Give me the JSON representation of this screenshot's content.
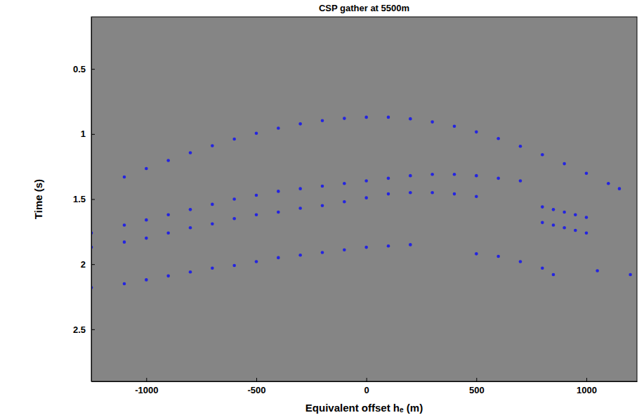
{
  "chart_data": {
    "type": "scatter",
    "title": "CSP gather at 5500m",
    "x_label": "Equivalent offset hₑ (m)",
    "y_label": "Time (s)",
    "xlim": [
      -1250,
      1230
    ],
    "xticks": [
      -1000,
      -500,
      0,
      500,
      1000
    ],
    "ylim": [
      0.1,
      2.9
    ],
    "yticks": [
      0.5,
      1,
      1.5,
      2,
      2.5
    ],
    "grid": false,
    "series": [
      {
        "color": "#2424e0",
        "marker": "circle",
        "x": [
          -1100,
          -1000,
          -900,
          -800,
          -700,
          -600,
          -500,
          -400,
          -300,
          -200,
          -100,
          0,
          100,
          200,
          300,
          400,
          500,
          600,
          700,
          800,
          900,
          1000,
          1100,
          1150
        ],
        "values": [
          1.33,
          1.265,
          1.203,
          1.144,
          1.09,
          1.039,
          0.994,
          0.955,
          0.922,
          0.897,
          0.88,
          0.871,
          0.871,
          0.883,
          0.907,
          0.94,
          0.984,
          1.035,
          1.094,
          1.159,
          1.228,
          1.302,
          1.38,
          1.42
        ]
      },
      {
        "color": "#2424e0",
        "marker": "circle",
        "x": [
          -1250,
          -1100,
          -1000,
          -900,
          -800,
          -700,
          -600,
          -500,
          -400,
          -300,
          -200,
          -100,
          0,
          100,
          200,
          300,
          400,
          500,
          600,
          700
        ],
        "values": [
          1.76,
          1.7,
          1.66,
          1.62,
          1.58,
          1.54,
          1.5,
          1.47,
          1.44,
          1.42,
          1.4,
          1.38,
          1.36,
          1.34,
          1.32,
          1.31,
          1.31,
          1.32,
          1.34,
          1.36
        ]
      },
      {
        "color": "#2424e0",
        "marker": "circle",
        "x": [
          -1250,
          -1100,
          -1000,
          -900,
          -800,
          -700,
          -600,
          -500,
          -400,
          -300,
          -200,
          -100,
          0,
          100,
          200,
          300,
          400,
          500
        ],
        "values": [
          1.87,
          1.83,
          1.8,
          1.76,
          1.72,
          1.69,
          1.65,
          1.62,
          1.6,
          1.57,
          1.55,
          1.52,
          1.49,
          1.46,
          1.45,
          1.45,
          1.46,
          1.48
        ]
      },
      {
        "color": "#2424e0",
        "marker": "circle",
        "x": [
          -1250,
          -1100,
          -1000,
          -900,
          -800,
          -700,
          -600,
          -500,
          -400,
          -300,
          -200,
          -100,
          0,
          100,
          200,
          500,
          600,
          700,
          800,
          850,
          1050,
          1200
        ],
        "values": [
          2.18,
          2.15,
          2.12,
          2.09,
          2.06,
          2.03,
          2.01,
          1.98,
          1.95,
          1.93,
          1.91,
          1.89,
          1.87,
          1.86,
          1.85,
          1.92,
          1.94,
          1.98,
          2.03,
          2.08,
          2.05,
          2.08
        ]
      },
      {
        "color": "#2424e0",
        "marker": "circle",
        "x": [
          800,
          850,
          900,
          950,
          1000,
          800,
          850,
          900,
          950,
          1000
        ],
        "values": [
          1.56,
          1.58,
          1.6,
          1.62,
          1.64,
          1.68,
          1.7,
          1.72,
          1.74,
          1.76
        ]
      }
    ]
  }
}
